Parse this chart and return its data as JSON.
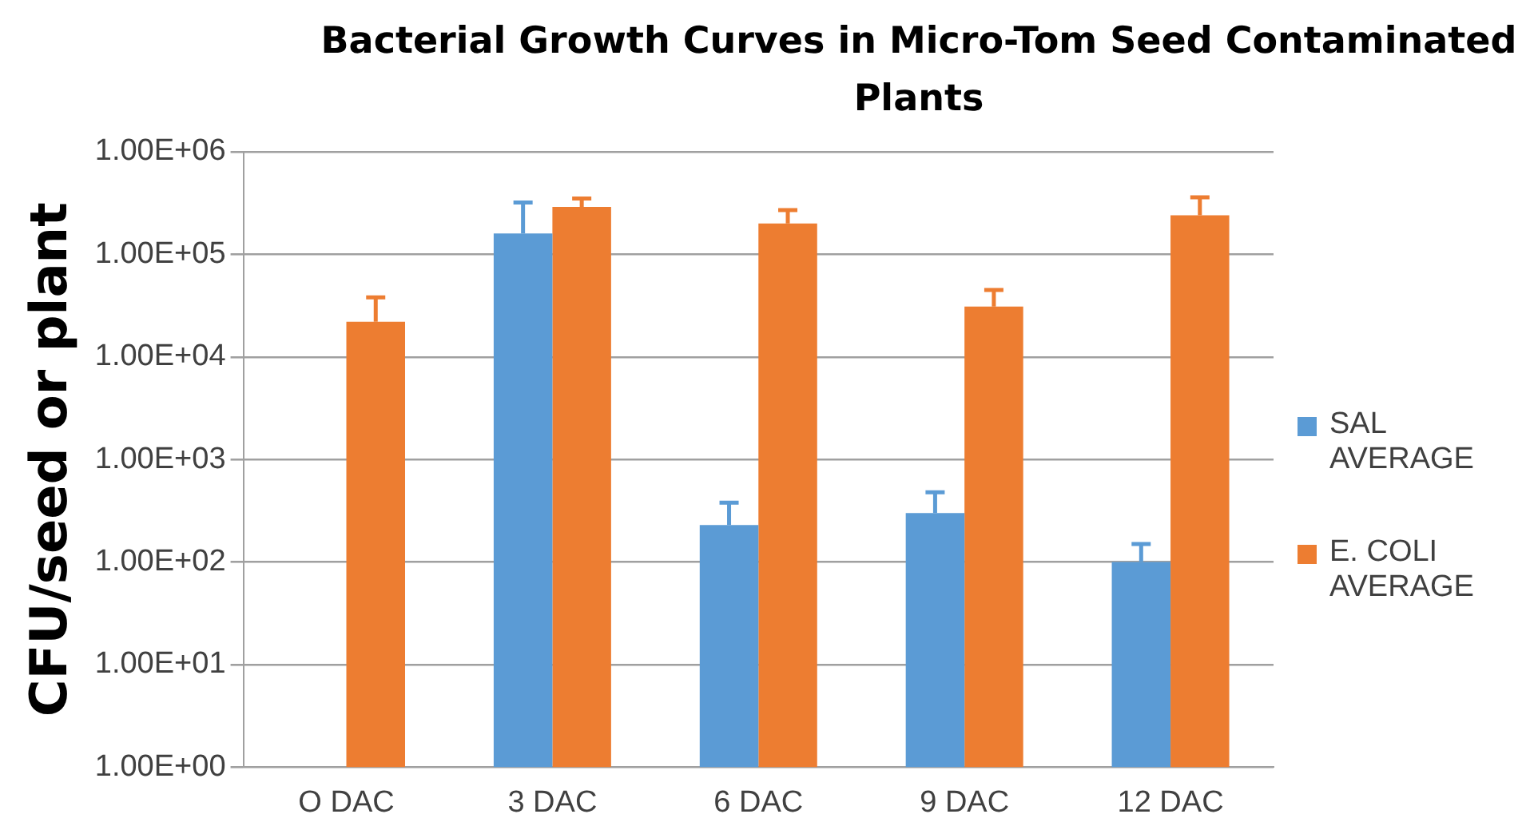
{
  "chart_data": {
    "type": "bar",
    "title": "Bacterial Growth Curves in Micro-Tom Seed Contaminated Plants",
    "ylabel": "CFU/seed or plant",
    "categories": [
      "O DAC",
      "3 DAC",
      "6 DAC",
      "9 DAC",
      "12 DAC"
    ],
    "series": [
      {
        "name": "SAL AVERAGE",
        "color": "#5b9bd5",
        "values": [
          1,
          160000,
          230,
          300,
          100
        ],
        "errors": [
          null,
          [
            160000,
            320000
          ],
          [
            230,
            380
          ],
          [
            300,
            480
          ],
          [
            100,
            150
          ]
        ]
      },
      {
        "name": "E. COLI AVERAGE",
        "color": "#ed7d31",
        "values": [
          22000,
          290000,
          200000,
          31000,
          240000
        ],
        "errors": [
          [
            22000,
            38000
          ],
          [
            290000,
            350000
          ],
          [
            200000,
            270000
          ],
          [
            31000,
            45000
          ],
          [
            240000,
            360000
          ]
        ]
      }
    ],
    "log": "y",
    "ylim": [
      1,
      1000000
    ],
    "yticks": [
      {
        "value": 1,
        "label": "1.00E+00"
      },
      {
        "value": 10,
        "label": "1.00E+01"
      },
      {
        "value": 100,
        "label": "1.00E+02"
      },
      {
        "value": 1000,
        "label": "1.00E+03"
      },
      {
        "value": 10000,
        "label": "1.00E+04"
      },
      {
        "value": 100000,
        "label": "1.00E+05"
      },
      {
        "value": 1000000,
        "label": "1.00E+06"
      }
    ],
    "grid": "y",
    "legend": "right"
  }
}
